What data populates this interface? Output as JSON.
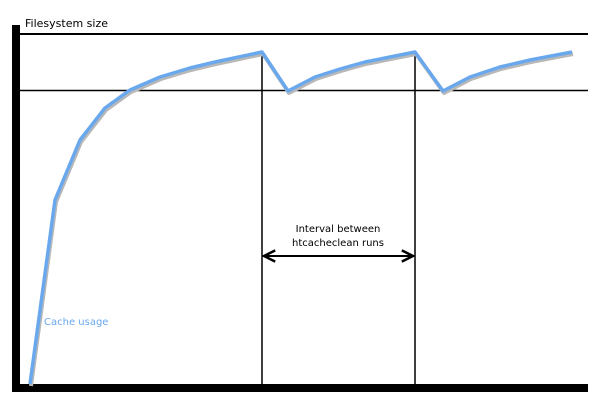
{
  "diagram": {
    "y_axis_label": "Filesystem size",
    "series_label": "Cache usage",
    "interval_label_line1": "Interval between",
    "interval_label_line2": "htcacheclean runs",
    "colors": {
      "curve": "#6aa8ee",
      "curve_shadow": "#b8b8b8",
      "axes": "#000000",
      "series_label": "#6aa8ee"
    }
  }
}
